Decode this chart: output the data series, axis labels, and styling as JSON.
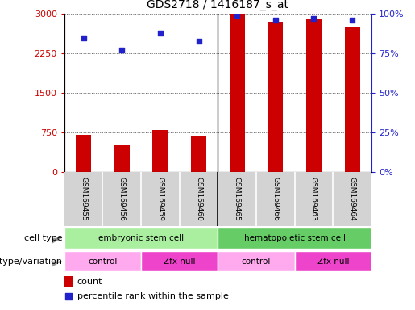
{
  "title": "GDS2718 / 1416187_s_at",
  "samples": [
    "GSM169455",
    "GSM169456",
    "GSM169459",
    "GSM169460",
    "GSM169465",
    "GSM169466",
    "GSM169463",
    "GSM169464"
  ],
  "counts": [
    700,
    520,
    800,
    670,
    3000,
    2850,
    2900,
    2750
  ],
  "percentile_ranks": [
    85,
    77,
    88,
    83,
    99,
    96,
    97,
    96
  ],
  "ylim_left": [
    0,
    3000
  ],
  "ylim_right": [
    0,
    100
  ],
  "yticks_left": [
    0,
    750,
    1500,
    2250,
    3000
  ],
  "yticks_right": [
    0,
    25,
    50,
    75,
    100
  ],
  "bar_color": "#CC0000",
  "dot_color": "#2222CC",
  "cell_types": [
    {
      "label": "embryonic stem cell",
      "start": 0,
      "end": 4,
      "color": "#AAEEA0"
    },
    {
      "label": "hematopoietic stem cell",
      "start": 4,
      "end": 8,
      "color": "#66CC66"
    }
  ],
  "genotypes": [
    {
      "label": "control",
      "start": 0,
      "end": 2,
      "color": "#FFAAEE"
    },
    {
      "label": "Zfx null",
      "start": 2,
      "end": 4,
      "color": "#EE44CC"
    },
    {
      "label": "control",
      "start": 4,
      "end": 6,
      "color": "#FFAAEE"
    },
    {
      "label": "Zfx null",
      "start": 6,
      "end": 8,
      "color": "#EE44CC"
    }
  ],
  "legend_count_color": "#CC0000",
  "legend_dot_color": "#2222CC",
  "left_axis_color": "#CC0000",
  "right_axis_color": "#2222CC",
  "group_separator": 3.5,
  "bar_width": 0.4
}
